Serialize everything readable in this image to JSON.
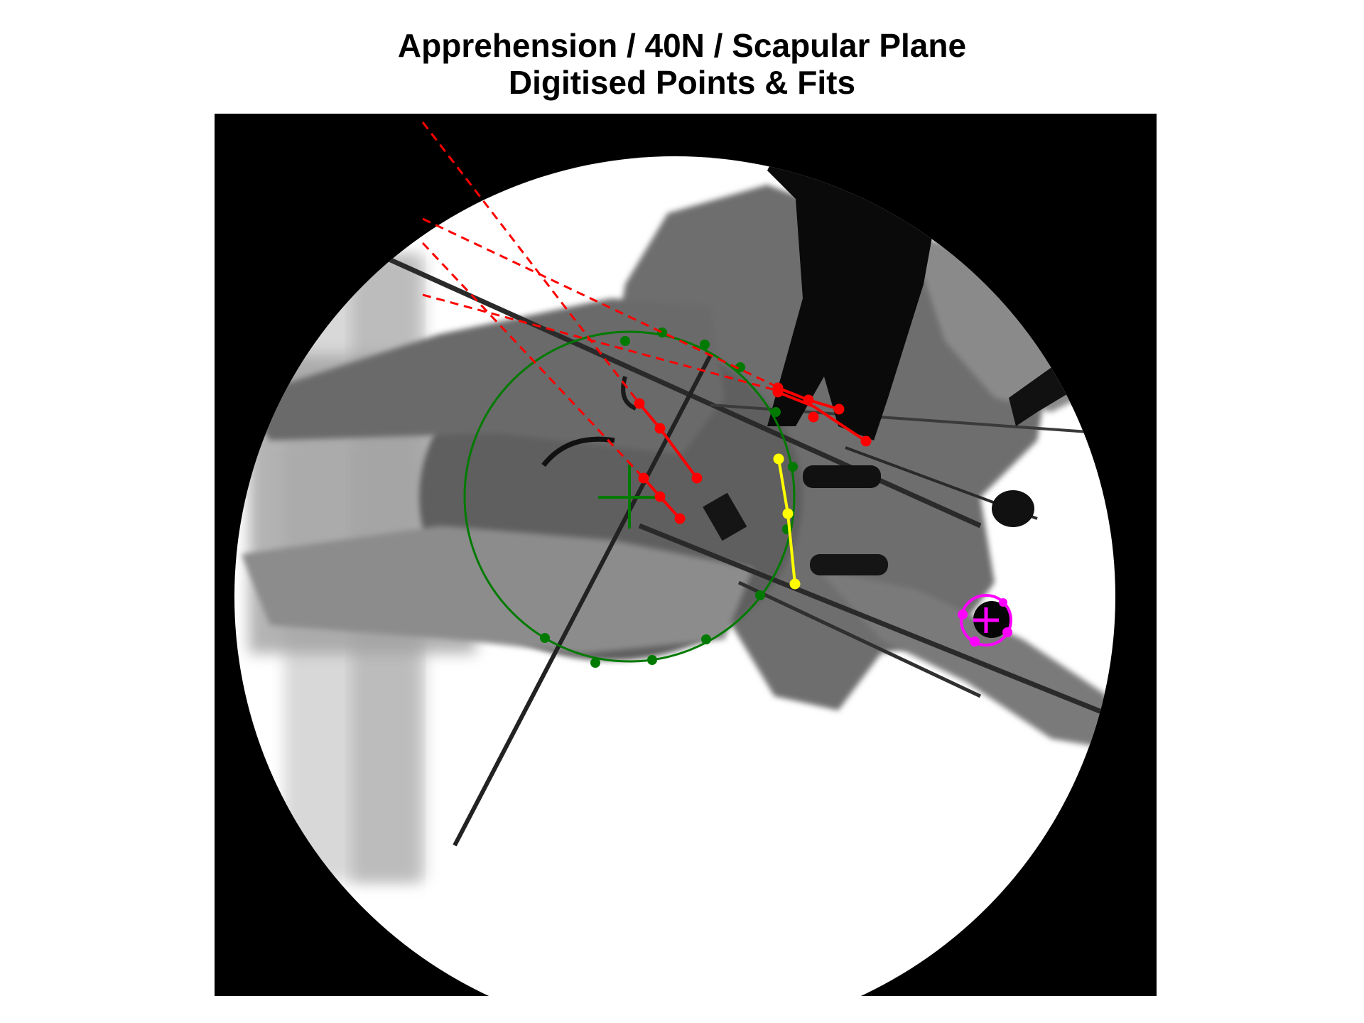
{
  "figure": {
    "title_line1": "Apprehension / 40N / Scapular Plane",
    "title_line2": "Digitised Points & Fits"
  },
  "overlay": {
    "colors": {
      "humeral_head": "#007a00",
      "axis_lines": "#ff0000",
      "glenoid": "#ffff00",
      "marker": "#ff00ff"
    },
    "point_sets": [
      {
        "name": "humeral-head-fit",
        "color_key": "humeral_head",
        "kind": "circle-fit",
        "points": 14
      },
      {
        "name": "axis-line-fits",
        "color_key": "axis_lines",
        "kind": "line-fit",
        "points": 12
      },
      {
        "name": "glenoid-line",
        "color_key": "glenoid",
        "kind": "polyline",
        "points": 3
      },
      {
        "name": "marker-fit",
        "color_key": "marker",
        "kind": "circle-fit",
        "points": 4
      }
    ]
  }
}
